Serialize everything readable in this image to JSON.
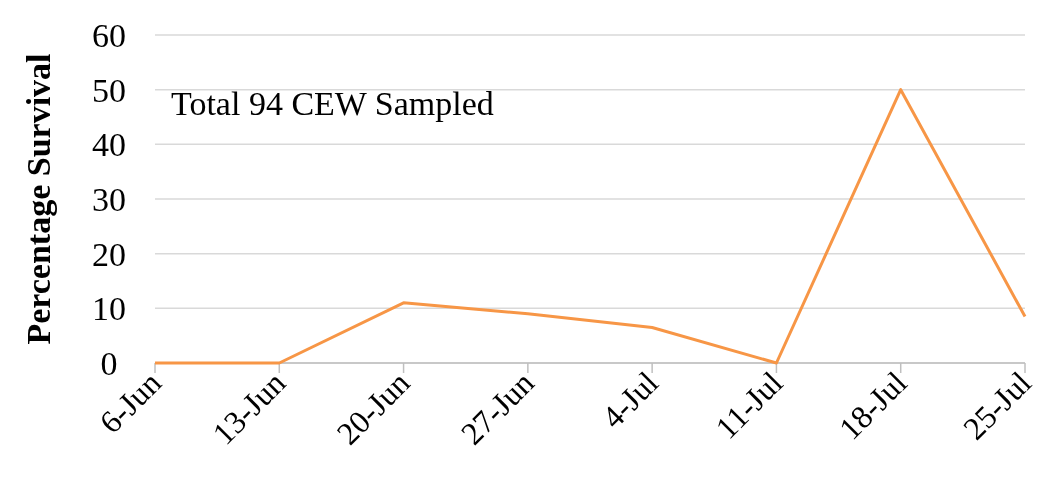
{
  "chart_data": {
    "type": "line",
    "ylabel": "Percentage Survival",
    "annotations": [
      "Total 94 CEW Sampled"
    ],
    "categories": [
      "6-Jun",
      "13-Jun",
      "20-Jun",
      "27-Jun",
      "4-Jul",
      "11-Jul",
      "18-Jul",
      "25-Jul"
    ],
    "series": [
      {
        "color": "#f79646",
        "values": [
          0,
          0,
          11,
          9,
          6.5,
          0,
          50,
          8.5
        ]
      }
    ],
    "ylim": [
      0,
      60
    ],
    "yticks": [
      0,
      10,
      20,
      30,
      40,
      50,
      60
    ],
    "grid": "y",
    "marker": "none",
    "line_style": "solid"
  }
}
